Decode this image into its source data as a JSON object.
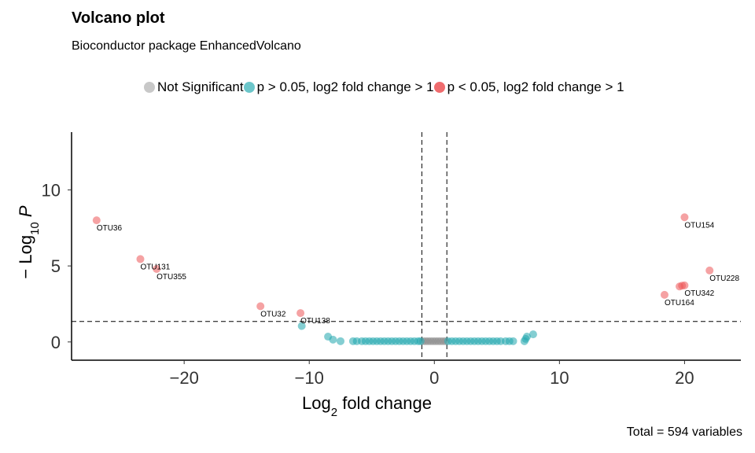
{
  "chart_data": {
    "type": "scatter",
    "title": "Volcano plot",
    "subtitle": "Bioconductor package EnhancedVolcano",
    "xlabel": "Log2 fold change",
    "ylabel": "-Log10 P",
    "xlim": [
      -29,
      24.5
    ],
    "ylim": [
      -1.2,
      13.8
    ],
    "xticks": [
      -20,
      -10,
      0,
      10,
      20
    ],
    "yticks": [
      0,
      5,
      10
    ],
    "fc_cutoff": 1,
    "p_cutoff_log10": 1.35,
    "caption": "Total = 594 variables",
    "legend_position": "top",
    "grid": false,
    "legend": [
      {
        "label": "Not Significant",
        "color": "#bdbdbd"
      },
      {
        "label": "p > 0.05, log2 fold change > 1",
        "color": "#5fc1c6"
      },
      {
        "label": "p < 0.05, log2 fold change > 1",
        "color": "#ec5558"
      }
    ],
    "series": [
      {
        "name": "Not Significant",
        "color": "#8c8c8c",
        "points": [
          [
            -0.9,
            0.05
          ],
          [
            -0.7,
            0.05
          ],
          [
            -0.5,
            0.05
          ],
          [
            -0.3,
            0.05
          ],
          [
            -0.1,
            0.05
          ],
          [
            0.1,
            0.05
          ],
          [
            0.3,
            0.05
          ],
          [
            0.5,
            0.05
          ],
          [
            0.7,
            0.05
          ],
          [
            0.9,
            0.05
          ]
        ]
      },
      {
        "name": "p > 0.05, log2 fold change > 1",
        "color": "#1fa6ad",
        "points": [
          [
            -10.6,
            1.05
          ],
          [
            -8.5,
            0.35
          ],
          [
            -8.1,
            0.15
          ],
          [
            -7.5,
            0.05
          ],
          [
            -6.5,
            0.05
          ],
          [
            -6.2,
            0.05
          ],
          [
            -5.8,
            0.05
          ],
          [
            -5.5,
            0.05
          ],
          [
            -5.2,
            0.05
          ],
          [
            -4.9,
            0.05
          ],
          [
            -4.6,
            0.05
          ],
          [
            -4.3,
            0.05
          ],
          [
            -4.0,
            0.05
          ],
          [
            -3.7,
            0.05
          ],
          [
            -3.4,
            0.05
          ],
          [
            -3.1,
            0.05
          ],
          [
            -2.8,
            0.05
          ],
          [
            -2.5,
            0.05
          ],
          [
            -2.2,
            0.05
          ],
          [
            -1.9,
            0.05
          ],
          [
            -1.6,
            0.05
          ],
          [
            -1.3,
            0.05
          ],
          [
            -1.1,
            0.05
          ],
          [
            1.1,
            0.05
          ],
          [
            1.4,
            0.05
          ],
          [
            1.7,
            0.05
          ],
          [
            2.0,
            0.05
          ],
          [
            2.3,
            0.05
          ],
          [
            2.6,
            0.05
          ],
          [
            2.9,
            0.05
          ],
          [
            3.2,
            0.05
          ],
          [
            3.5,
            0.05
          ],
          [
            3.8,
            0.05
          ],
          [
            4.1,
            0.05
          ],
          [
            4.4,
            0.05
          ],
          [
            4.7,
            0.05
          ],
          [
            5.0,
            0.05
          ],
          [
            5.3,
            0.05
          ],
          [
            5.7,
            0.05
          ],
          [
            6.0,
            0.05
          ],
          [
            6.3,
            0.05
          ],
          [
            7.2,
            0.05
          ],
          [
            7.3,
            0.2
          ],
          [
            7.4,
            0.35
          ],
          [
            7.9,
            0.5
          ]
        ]
      },
      {
        "name": "p < 0.05, log2 fold change > 1",
        "color": "#ec5558",
        "points": [
          [
            -27.0,
            8.0
          ],
          [
            -23.5,
            5.45
          ],
          [
            -22.2,
            4.8
          ],
          [
            -13.9,
            2.35
          ],
          [
            -10.7,
            1.9
          ],
          [
            20.0,
            8.2
          ],
          [
            22.0,
            4.7
          ],
          [
            19.6,
            3.65
          ],
          [
            19.8,
            3.7
          ],
          [
            20.0,
            3.72
          ],
          [
            18.4,
            3.1
          ]
        ]
      }
    ],
    "labels": [
      {
        "text": "OTU36",
        "x": -27.0,
        "y": 8.0
      },
      {
        "text": "OTU131",
        "x": -23.5,
        "y": 5.45
      },
      {
        "text": "OTU355",
        "x": -22.2,
        "y": 4.8
      },
      {
        "text": "OTU32",
        "x": -13.9,
        "y": 2.35
      },
      {
        "text": "OTU138",
        "x": -10.7,
        "y": 1.9
      },
      {
        "text": "OTU154",
        "x": 20.0,
        "y": 8.2
      },
      {
        "text": "OTU228",
        "x": 22.0,
        "y": 4.7
      },
      {
        "text": "OTU342",
        "x": 20.0,
        "y": 3.72
      },
      {
        "text": "OTU164",
        "x": 18.4,
        "y": 3.1
      }
    ]
  }
}
